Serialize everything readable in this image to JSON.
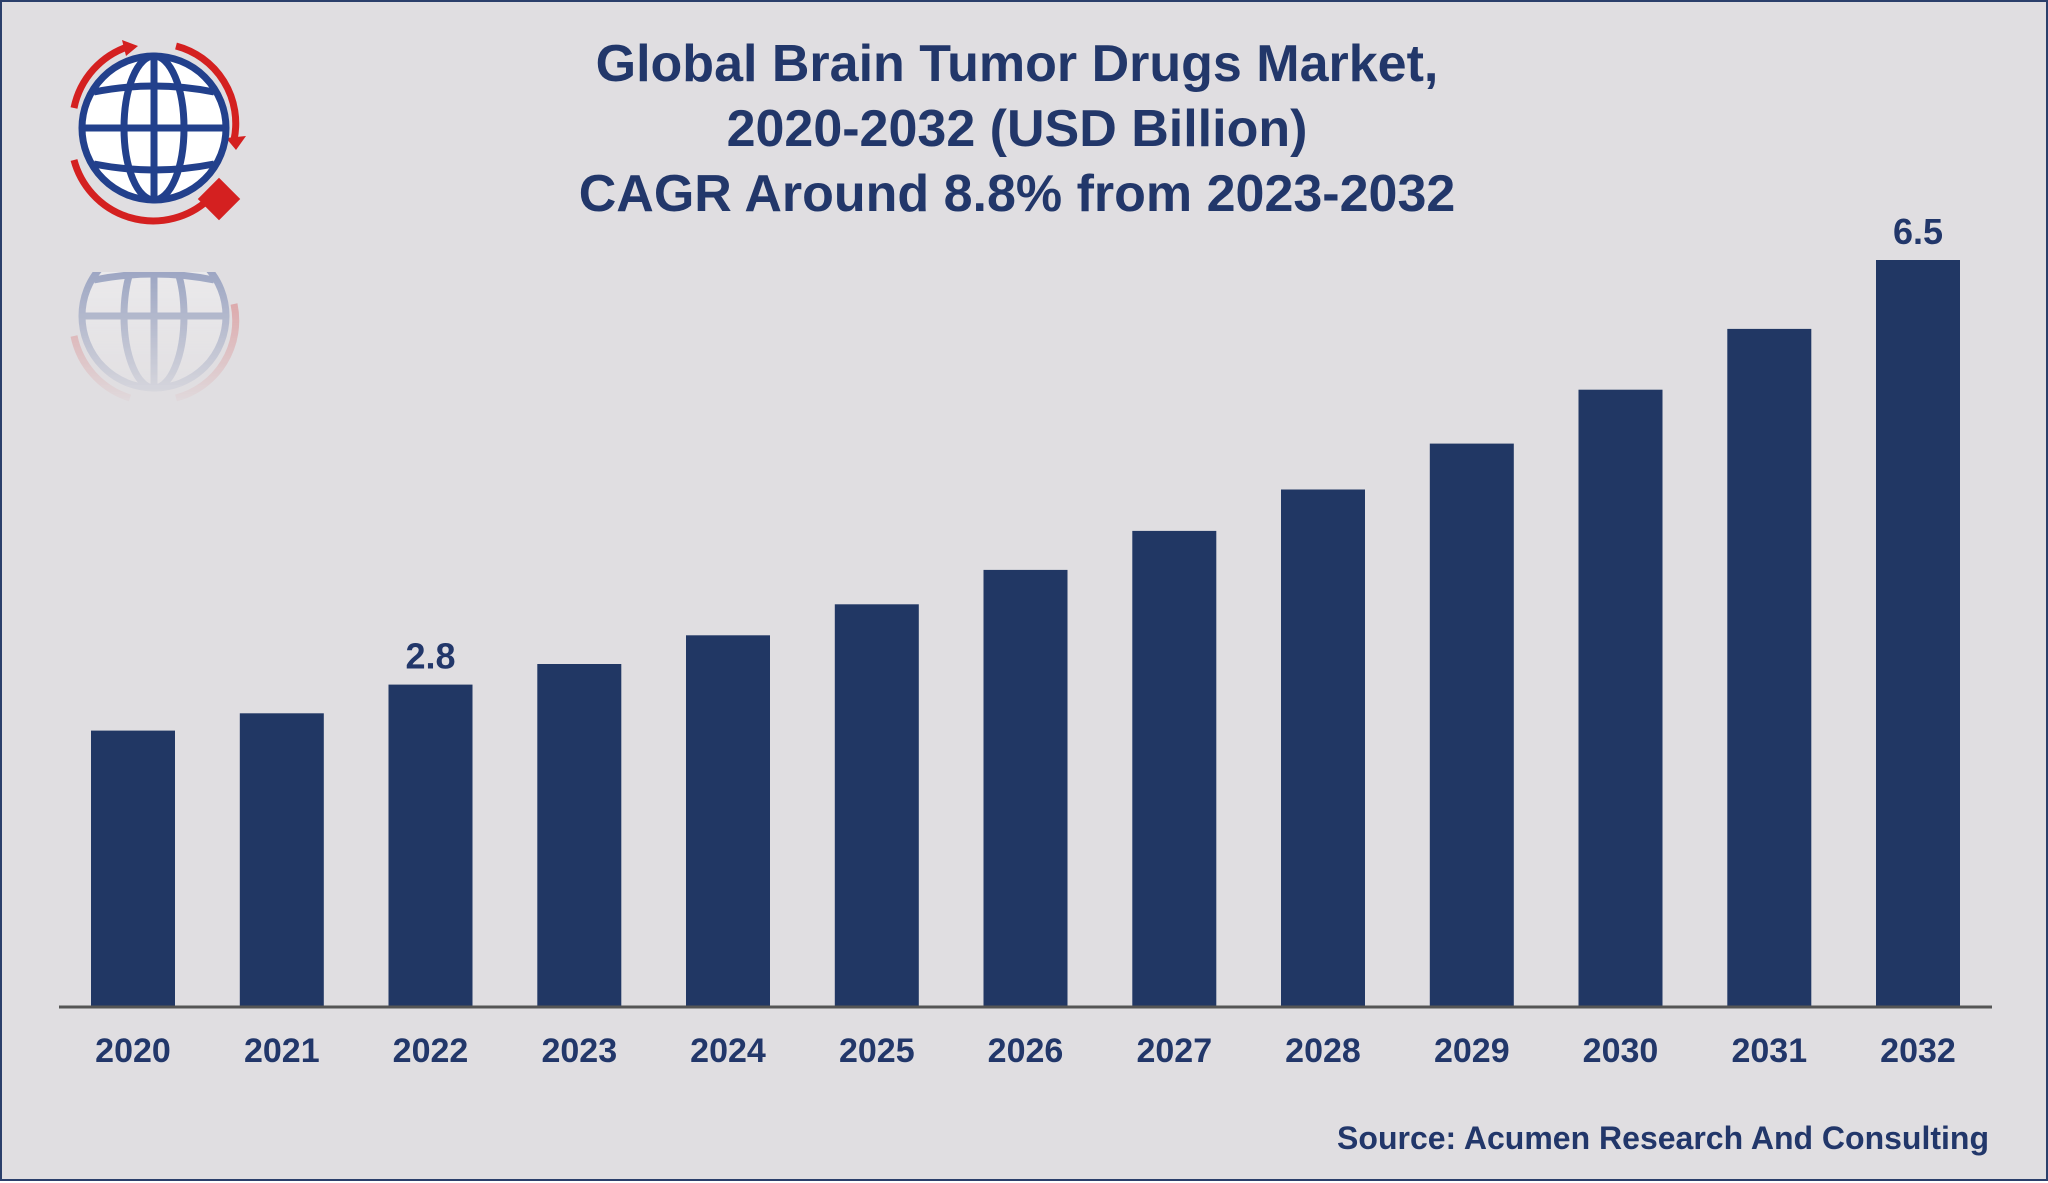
{
  "colors": {
    "bar": "#213764",
    "text": "#22376a",
    "background": "#e0dee1",
    "axis": "#555555",
    "logo_globe": "#22408c",
    "logo_red": "#d42020"
  },
  "logo": {
    "icon": "globe-logo-icon"
  },
  "chart_data": {
    "type": "bar",
    "title": "Global Brain Tumor Drugs Market,",
    "title_line2": "2020-2032 (USD Billion)",
    "subtitle": "CAGR Around 8.8% from 2023-2032",
    "xlabel": "",
    "ylabel": "",
    "categories": [
      "2020",
      "2021",
      "2022",
      "2023",
      "2024",
      "2025",
      "2026",
      "2027",
      "2028",
      "2029",
      "2030",
      "2031",
      "2032"
    ],
    "values": [
      2.4,
      2.55,
      2.8,
      2.98,
      3.23,
      3.5,
      3.8,
      4.14,
      4.5,
      4.9,
      5.37,
      5.9,
      6.5
    ],
    "data_labels": [
      {
        "category": "2022",
        "text": "2.8"
      },
      {
        "category": "2032",
        "text": "6.5"
      }
    ],
    "ylim": [
      0,
      6.5
    ],
    "grid": false,
    "legend": "none"
  },
  "source": "Source: Acumen Research And Consulting"
}
